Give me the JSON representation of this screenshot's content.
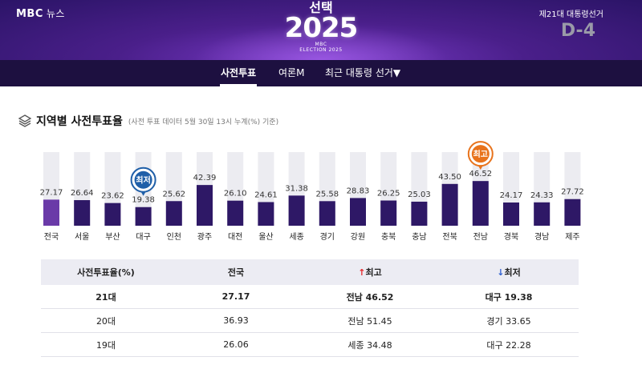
{
  "header": {
    "logo": "MBC",
    "logo_sub": "뉴스",
    "brand_kr": "선택",
    "brand_year": "2025",
    "brand_tag1": "MBC",
    "brand_tag2": "ELECTION 2025",
    "election": "제21대 대통령선거",
    "dday": "D-4"
  },
  "nav": {
    "tabs": [
      "사전투표",
      "여론M",
      "최근 대통령 선거▼"
    ],
    "active": 0
  },
  "section": {
    "title": "지역별 사전투표율",
    "note": "(사전 투표 데이터 5월 30일 13시 누계(%) 기준)"
  },
  "chart_data": {
    "type": "bar",
    "categories": [
      "전국",
      "서울",
      "부산",
      "대구",
      "인천",
      "광주",
      "대전",
      "울산",
      "세종",
      "경기",
      "강원",
      "충북",
      "충남",
      "전북",
      "전남",
      "경북",
      "경남",
      "제주"
    ],
    "values": [
      27.17,
      26.64,
      23.62,
      19.38,
      25.62,
      42.39,
      26.1,
      24.61,
      31.38,
      25.58,
      28.83,
      26.25,
      25.03,
      43.5,
      46.52,
      24.17,
      24.33,
      27.72
    ],
    "value_labels": [
      "27.17",
      "26.64",
      "23.62",
      "19.38",
      "25.62",
      "42.39",
      "26.10",
      "24.61",
      "31.38",
      "25.58",
      "28.83",
      "26.25",
      "25.03",
      "43.50",
      "46.52",
      "24.17",
      "24.33",
      "27.72"
    ],
    "ylim": [
      0,
      100
    ],
    "highlight_color": "#6a3aa8",
    "bar_color": "#2e1866",
    "track_color": "#ececf1",
    "markers": [
      {
        "label": "최저",
        "index": 3,
        "color": "#1f5fa8"
      },
      {
        "label": "최고",
        "index": 14,
        "color": "#e8731c"
      }
    ]
  },
  "table": {
    "headers": [
      "사전투표율(%)",
      "전국",
      "최고",
      "최저"
    ],
    "up_arrow": "↑",
    "down_arrow": "↓",
    "rows": [
      [
        "21대",
        "27.17",
        "전남 46.52",
        "대구 19.38"
      ],
      [
        "20대",
        "36.93",
        "전남 51.45",
        "경기 33.65"
      ],
      [
        "19대",
        "26.06",
        "세종 34.48",
        "대구 22.28"
      ]
    ]
  }
}
